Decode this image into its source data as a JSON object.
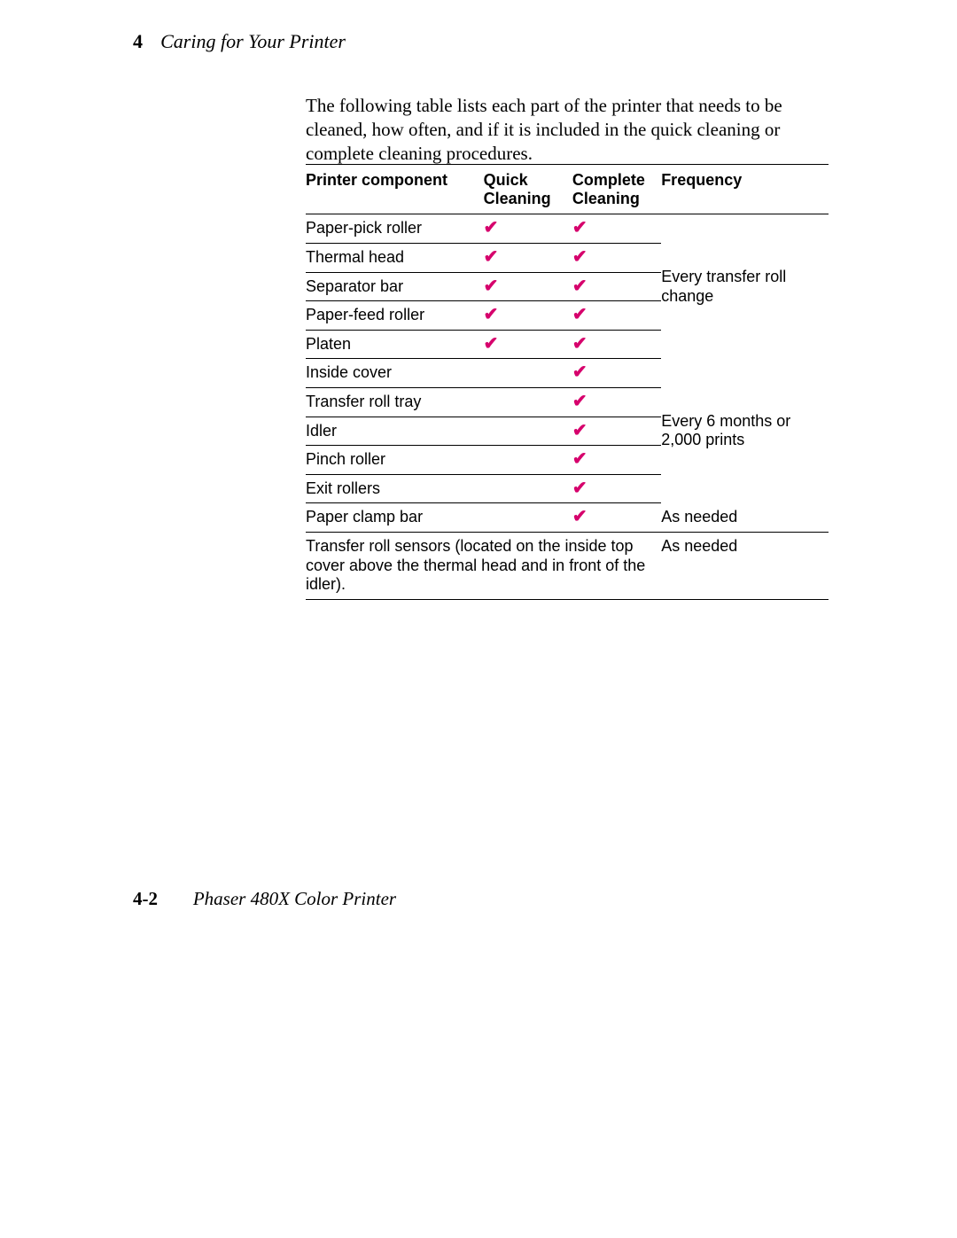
{
  "header": {
    "chapter_number": "4",
    "chapter_title": "Caring for Your Printer"
  },
  "intro_paragraph": "The following table lists each part of the printer that needs to be cleaned, how often, and if it is included in the quick cleaning or complete cleaning procedures.",
  "check_color": "#d6006c",
  "check_glyph": "✔",
  "columns": {
    "component": "Printer component",
    "quick": "Quick Cleaning",
    "complete": "Complete Cleaning",
    "frequency": "Frequency"
  },
  "freq_group1": "Every transfer roll change",
  "freq_group2": "Every 6 months or 2,000 prints",
  "rows": {
    "r1": {
      "component": "Paper-pick roller",
      "quick": true,
      "complete": true
    },
    "r2": {
      "component": "Thermal head",
      "quick": true,
      "complete": true
    },
    "r3": {
      "component": "Separator bar",
      "quick": true,
      "complete": true
    },
    "r4": {
      "component": "Paper-feed roller",
      "quick": true,
      "complete": true
    },
    "r5": {
      "component": "Platen",
      "quick": true,
      "complete": true
    },
    "r6": {
      "component": "Inside cover",
      "quick": false,
      "complete": true
    },
    "r7": {
      "component": "Transfer roll tray",
      "quick": false,
      "complete": true
    },
    "r8": {
      "component": "Idler",
      "quick": false,
      "complete": true
    },
    "r9": {
      "component": "Pinch roller",
      "quick": false,
      "complete": true
    },
    "r10": {
      "component": "Exit rollers",
      "quick": false,
      "complete": true
    },
    "r11": {
      "component": "Paper clamp bar",
      "quick": false,
      "complete": true,
      "frequency": "As needed"
    },
    "r12": {
      "component": "Transfer roll sensors (located on the inside top cover above the thermal head and in front of the idler).",
      "frequency": "As needed"
    }
  },
  "footer": {
    "page_number": "4-2",
    "model": "Phaser 480X Color Printer"
  }
}
